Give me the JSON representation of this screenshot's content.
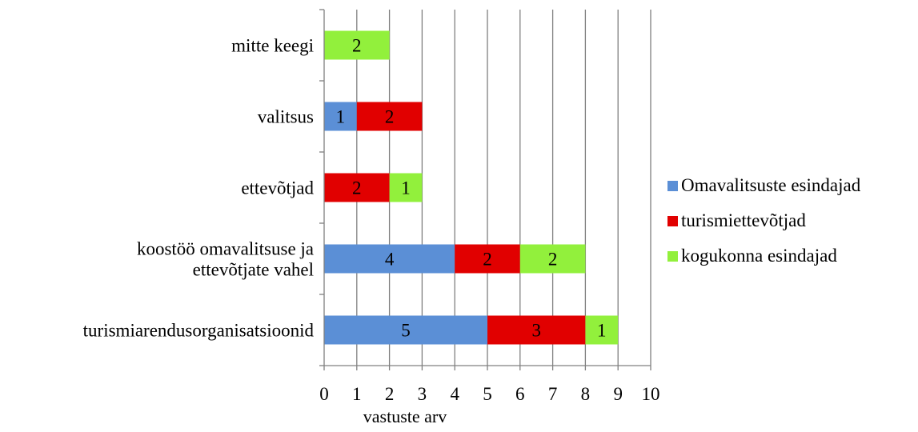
{
  "chart_data": {
    "type": "bar",
    "orientation": "horizontal",
    "stacked": true,
    "categories": [
      "turismiarendusorganisatsioonid",
      "koostöö omavalitsuse ja ettevõtjate vahel",
      "ettevõtjad",
      "valitsus",
      "mitte keegi"
    ],
    "category_lines": [
      [
        "turismiarendusorganisatsioonid"
      ],
      [
        "koostöö omavalitsuse ja",
        "ettevõtjate vahel"
      ],
      [
        "ettevõtjad"
      ],
      [
        "valitsus"
      ],
      [
        "mitte keegi"
      ]
    ],
    "series": [
      {
        "name": "Omavalitsuste esindajad",
        "color": "#5B8FD6",
        "values": [
          5,
          4,
          0,
          1,
          0
        ]
      },
      {
        "name": "turismiettevõtjad",
        "color": "#E10000",
        "values": [
          3,
          2,
          2,
          2,
          0
        ]
      },
      {
        "name": "kogukonna esindajad",
        "color": "#92F03C",
        "values": [
          1,
          2,
          1,
          0,
          2
        ]
      }
    ],
    "xlabel": "vastuste arv",
    "ylabel": "",
    "title": "",
    "xlim": [
      0,
      10
    ],
    "xticks": [
      "0",
      "1",
      "2",
      "3",
      "4",
      "5",
      "6",
      "7",
      "8",
      "9",
      "10"
    ],
    "grid": "vertical",
    "legend": "right"
  }
}
